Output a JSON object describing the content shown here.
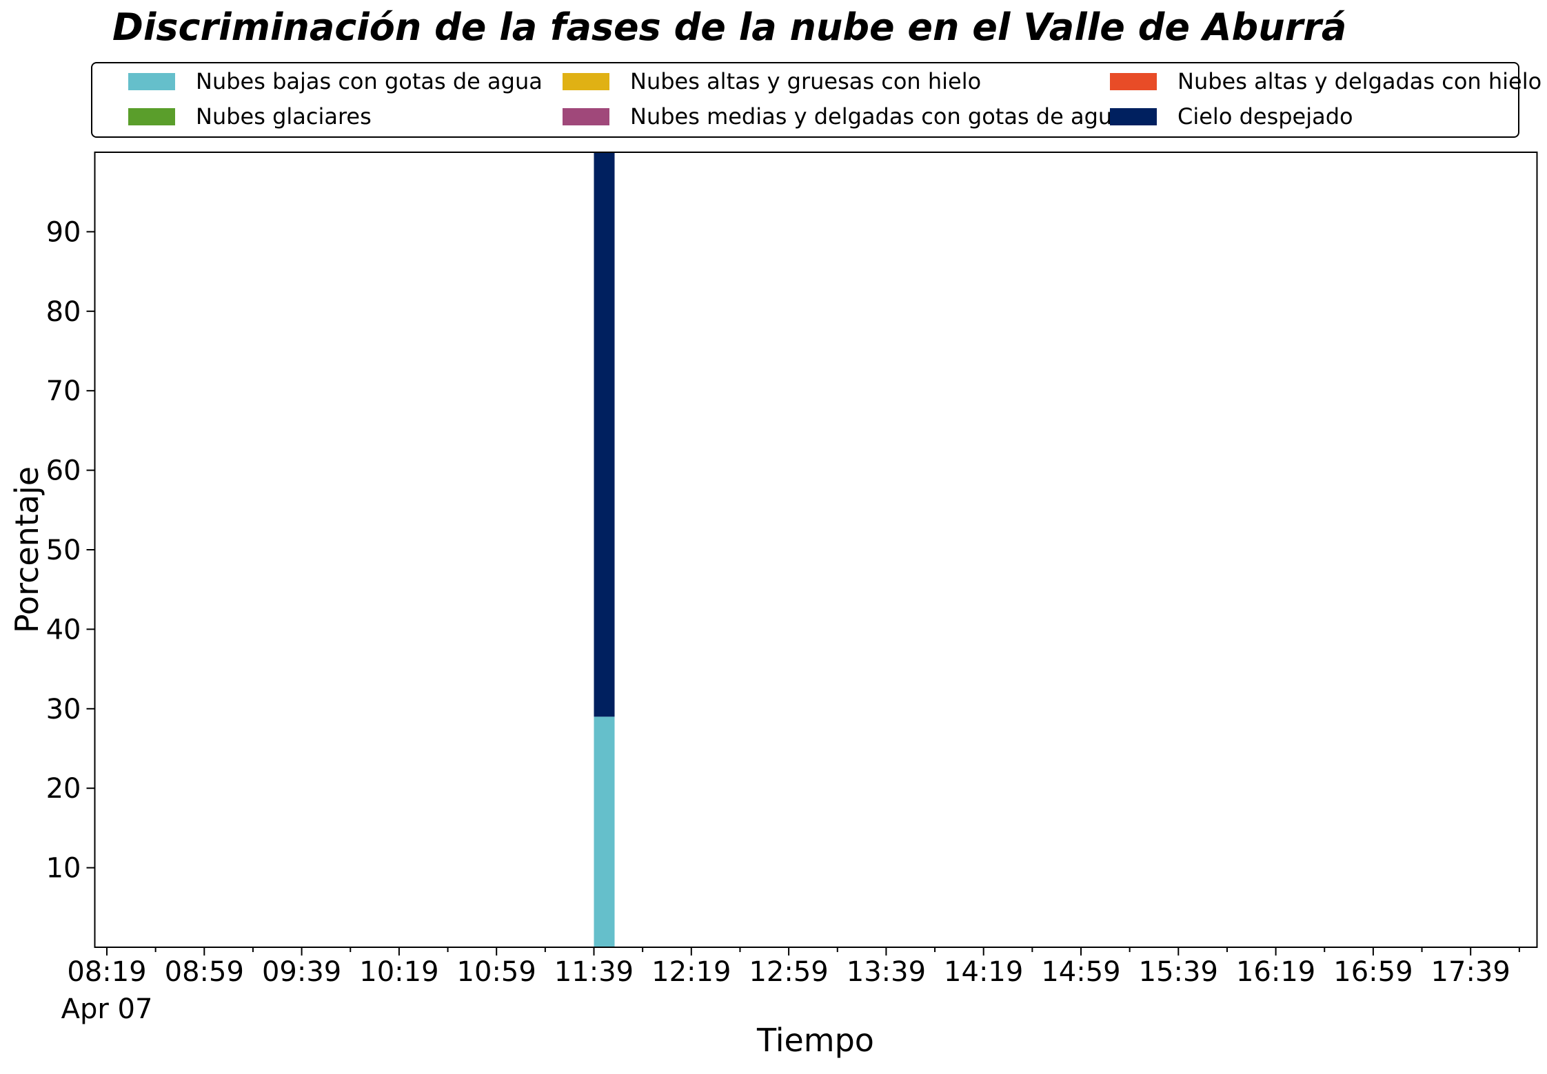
{
  "chart_data": {
    "type": "bar",
    "stacked": true,
    "title": "Discriminación de la fases de la nube en el Valle de Aburrá",
    "xlabel": "Tiempo",
    "ylabel": "Porcentaje",
    "ylim": [
      0,
      100
    ],
    "yticks": [
      10,
      20,
      30,
      40,
      50,
      60,
      70,
      80,
      90
    ],
    "x_time_range": [
      "08:19",
      "17:59"
    ],
    "x_major_ticks": [
      "08:19",
      "08:59",
      "09:39",
      "10:19",
      "10:59",
      "11:39",
      "12:19",
      "12:59",
      "13:39",
      "14:19",
      "14:59",
      "15:39",
      "16:19",
      "16:59",
      "17:39"
    ],
    "x_first_tick_date": "Apr 07",
    "grid": false,
    "legend_position": "top",
    "legend_columns": 3,
    "categories": [
      "11:39"
    ],
    "series": [
      {
        "name": "Nubes bajas con gotas de agua",
        "color": "#65bfcb",
        "values": [
          29
        ]
      },
      {
        "name": "Nubes altas y gruesas con hielo",
        "color": "#e0b114",
        "values": [
          0
        ]
      },
      {
        "name": "Nubes altas y delgadas con hielo",
        "color": "#e84c27",
        "values": [
          0
        ]
      },
      {
        "name": "Nubes glaciares",
        "color": "#5a9e2b",
        "values": [
          0
        ]
      },
      {
        "name": "Nubes medias y delgadas con gotas de agua",
        "color": "#a0487a",
        "values": [
          0
        ]
      },
      {
        "name": "Cielo despejado",
        "color": "#00205f",
        "values": [
          71
        ]
      }
    ]
  }
}
